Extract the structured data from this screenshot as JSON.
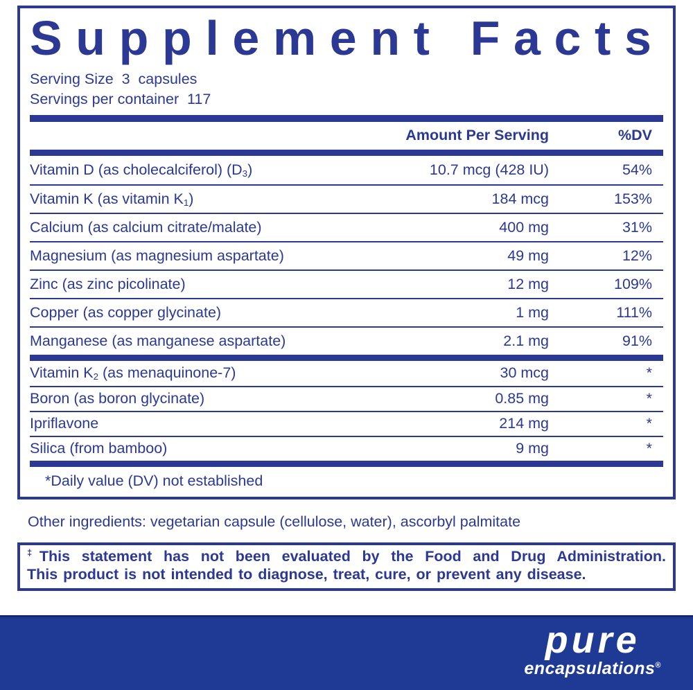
{
  "label": {
    "title": "Supplement Facts",
    "serving_size": "Serving Size  3  capsules",
    "servings_per_container": "Servings per container  117",
    "columns": {
      "amount": "Amount Per Serving",
      "dv": "%DV"
    },
    "rows": [
      {
        "pre": "Vitamin D (as cholecalciferol) (D",
        "sub": "3",
        "post": ")",
        "amount": "10.7 mcg (428 IU)",
        "dv": "54%"
      },
      {
        "pre": "Vitamin K (as vitamin K",
        "sub": "1",
        "post": ")",
        "amount": "184 mcg",
        "dv": "153%"
      },
      {
        "pre": "Calcium (as calcium citrate/malate)",
        "amount": "400 mg",
        "dv": "31%"
      },
      {
        "pre": "Magnesium (as magnesium aspartate)",
        "amount": "49 mg",
        "dv": "12%"
      },
      {
        "pre": "Zinc (as zinc picolinate)",
        "amount": "12 mg",
        "dv": "109%"
      },
      {
        "pre": "Copper (as copper glycinate)",
        "amount": "1 mg",
        "dv": "111%"
      },
      {
        "pre": "Manganese (as manganese aspartate)",
        "amount": "2.1 mg",
        "dv": "91%"
      },
      {
        "pre": "Vitamin K",
        "sub": "2",
        "post": " (as menaquinone-7)",
        "amount": "30 mcg",
        "dv": "*"
      },
      {
        "pre": "Boron (as boron glycinate)",
        "amount": "0.85 mg",
        "dv": "*"
      },
      {
        "pre": "Ipriflavone",
        "amount": "214 mg",
        "dv": "*"
      },
      {
        "pre": "Silica (from bamboo)",
        "amount": "9 mg",
        "dv": "*"
      }
    ],
    "footnote": "*Daily value (DV) not established"
  },
  "other_ingredients": "Other ingredients: vegetarian capsule (cellulose, water), ascorbyl palmitate",
  "disclaimer": {
    "dagger": "‡",
    "line1": "This statement has not been evaluated by the Food and Drug Administration.",
    "line2": "This product is not intended to diagnose, treat, cure, or prevent any disease."
  },
  "footer": {
    "brand": "pure",
    "brand_sub": "encapsulations",
    "registered": "®"
  },
  "colors": {
    "ink": "#2b3894",
    "footer_background": "#1e3a94",
    "background": "#ffffff",
    "logo_text": "#ffffff"
  }
}
